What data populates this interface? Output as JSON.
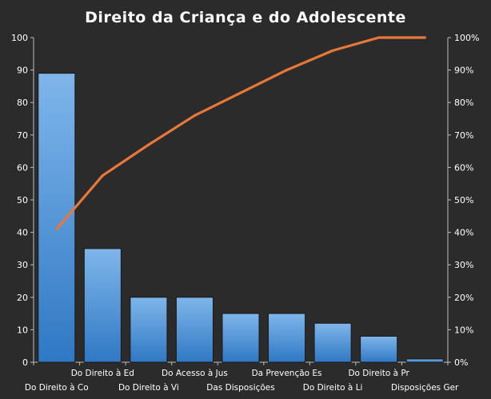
{
  "chart_data": {
    "type": "bar",
    "title": "Direito  da Criança  e do Adolescente",
    "categories": [
      "Do Direito à Co",
      "Do Direito à Ed",
      "Do Direito à Vi",
      "Do Acesso à Jus",
      "Das Disposições",
      "Da Prevenção Es",
      "Do Direito à Li",
      "Do Direito à Pr",
      "Disposições Ger"
    ],
    "series": [
      {
        "type": "bar",
        "values": [
          89,
          35,
          20,
          20,
          15,
          15,
          12,
          8,
          1
        ]
      },
      {
        "type": "line",
        "values": [
          41,
          57.5,
          67,
          76,
          83,
          90,
          96,
          100,
          100
        ]
      }
    ],
    "ylim": [
      0,
      100
    ],
    "yticks": [
      0,
      10,
      20,
      30,
      40,
      50,
      60,
      70,
      80,
      90,
      100
    ],
    "y2lim": [
      0,
      100
    ],
    "y2ticks": [
      "0%",
      "10%",
      "20%",
      "30%",
      "40%",
      "50%",
      "60%",
      "70%",
      "80%",
      "90%",
      "100%"
    ],
    "colors": {
      "background": "#2b2b2b",
      "bar": "#4a90d6",
      "bar_top": "#7fb6ea",
      "line": "#e8773a",
      "text": "#ffffff"
    },
    "grid": false,
    "legend": "none"
  }
}
